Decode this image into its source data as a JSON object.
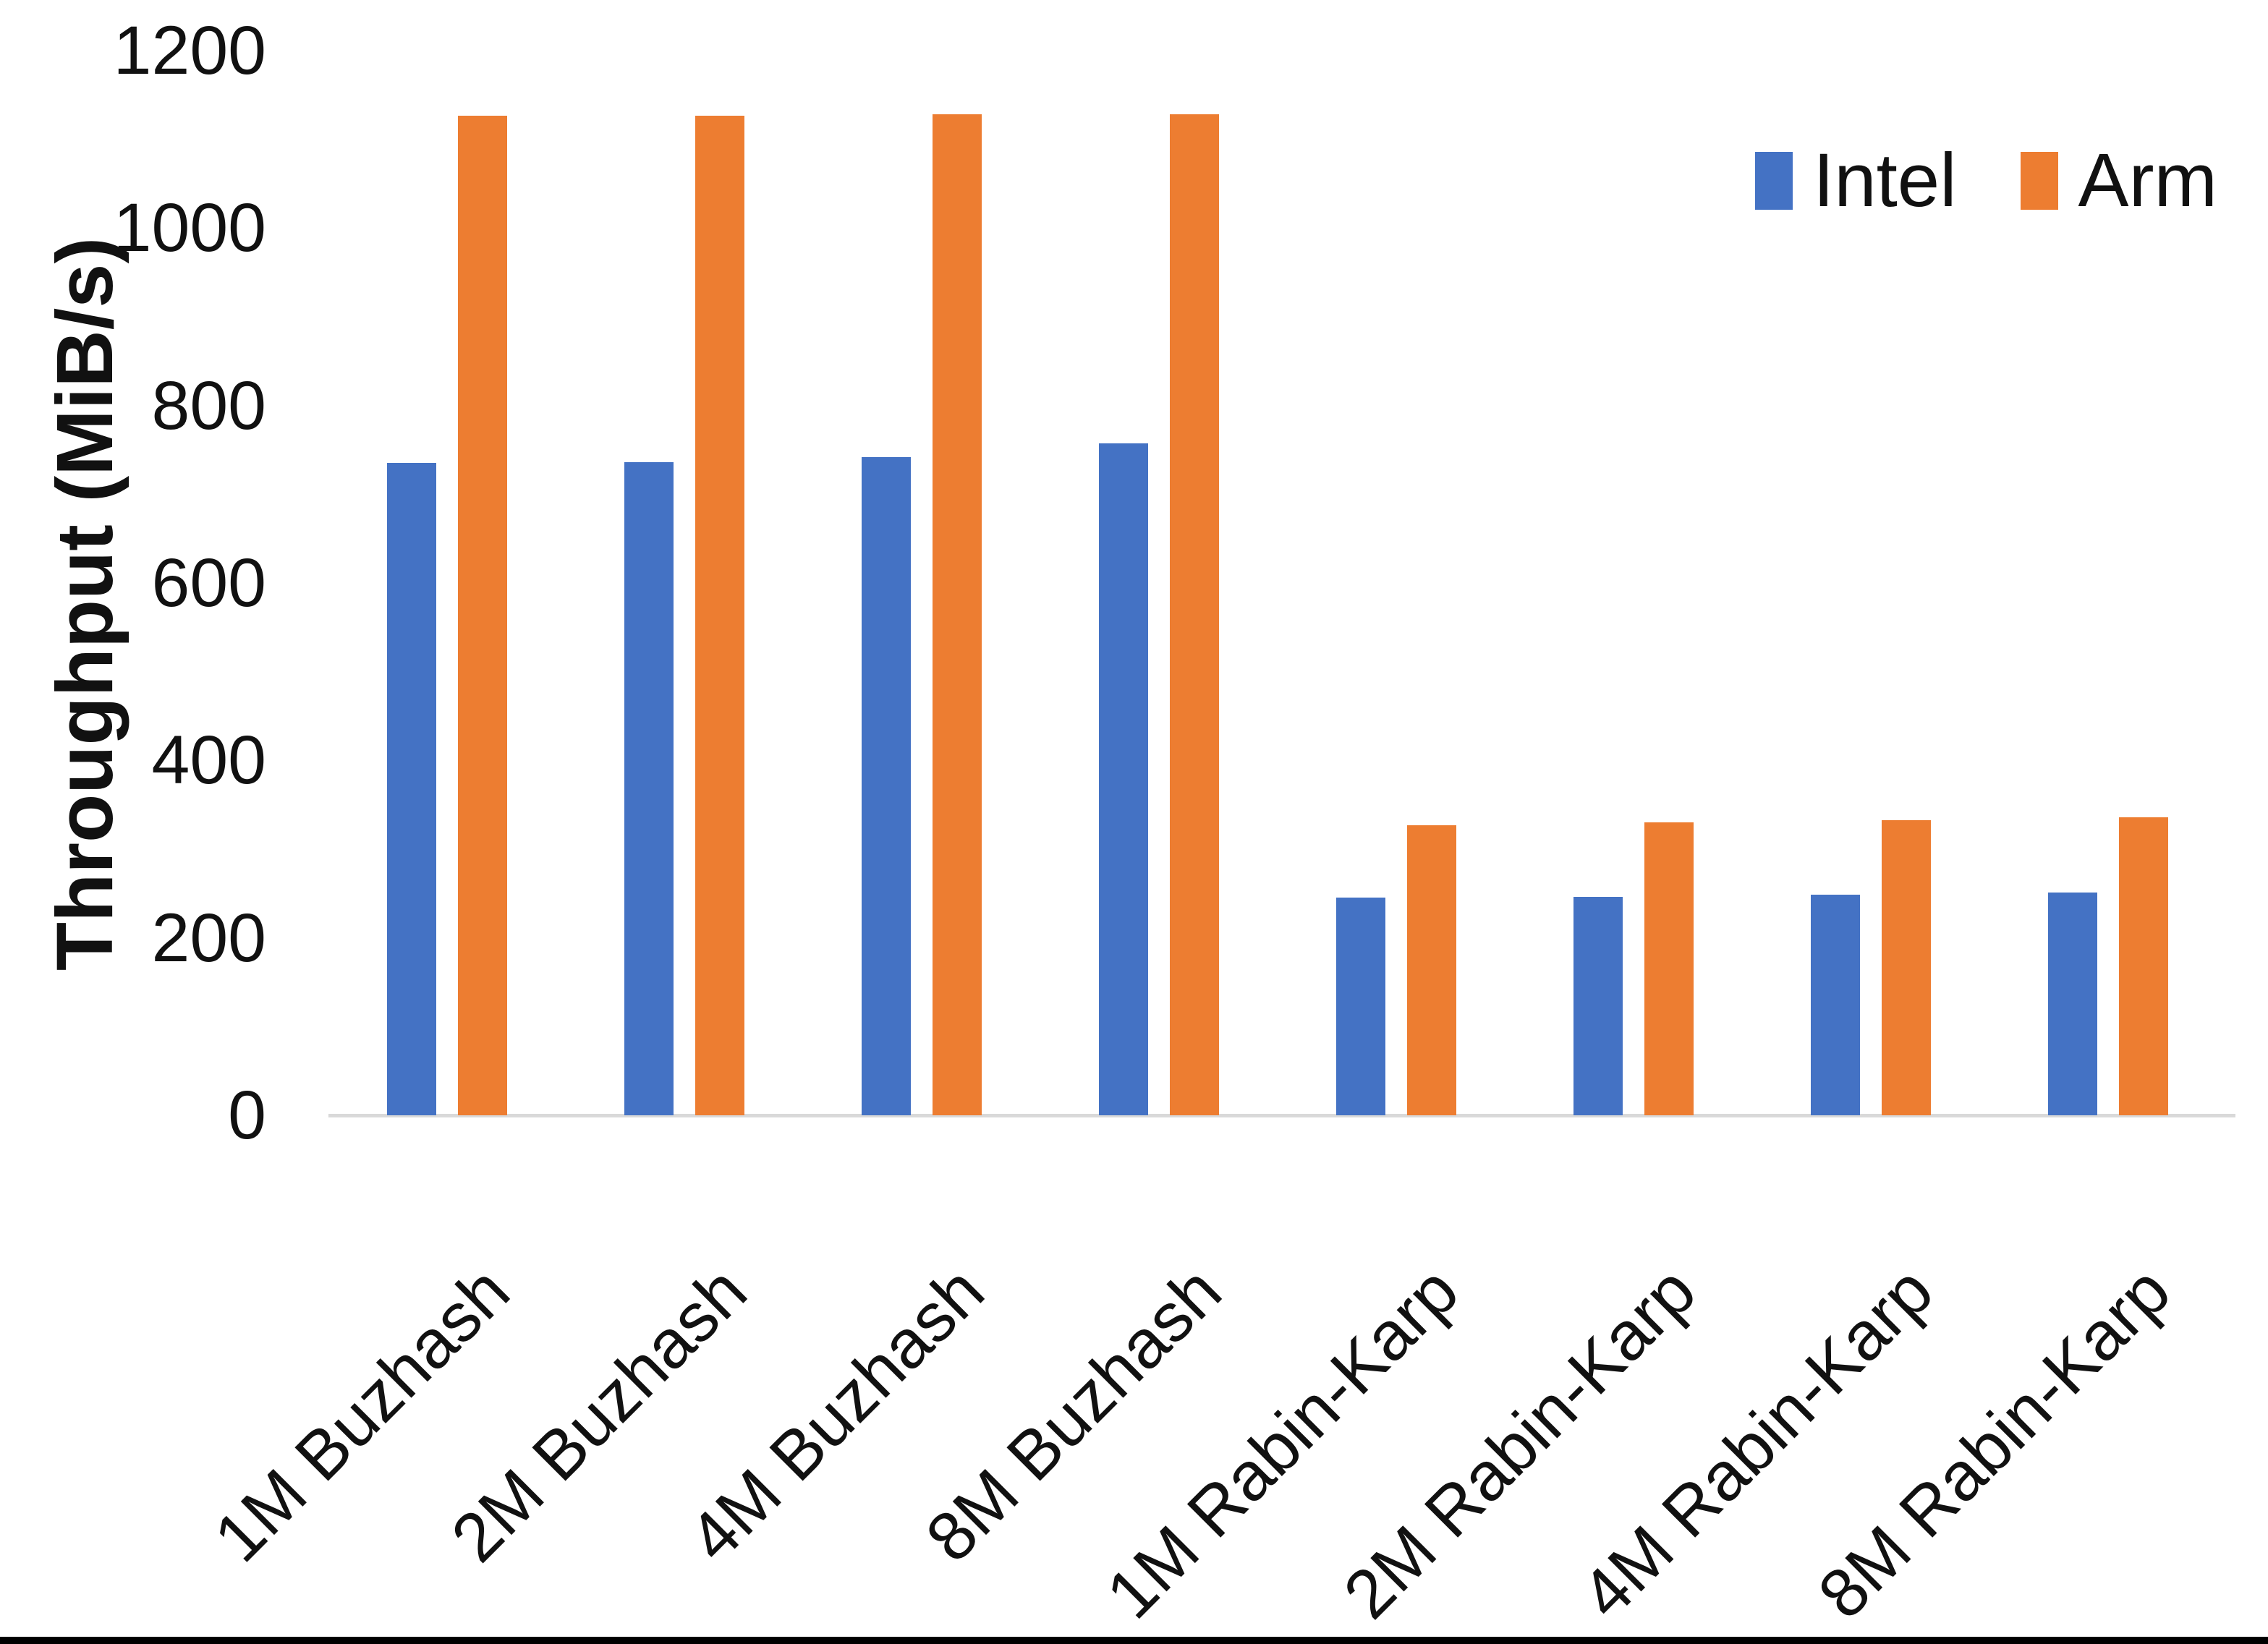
{
  "chart_data": {
    "type": "bar",
    "title": "",
    "xlabel": "",
    "ylabel": "Throughput (MiB/s)",
    "ylim": [
      0,
      1200
    ],
    "yticks": [
      0,
      200,
      400,
      600,
      800,
      1000,
      1200
    ],
    "grid": false,
    "legend_position": "top-right",
    "axis_line_color": "#d9d9d9",
    "categories": [
      "1M Buzhash",
      "2M Buzhash",
      "4M Buzhash",
      "8M Buzhash",
      "1M Rabin-Karp",
      "2M Rabin-Karp",
      "4M Rabin-Karp",
      "8M Rabin-Karp"
    ],
    "series": [
      {
        "name": "Intel",
        "color": "#4472C4",
        "values": [
          735,
          736,
          742,
          757,
          245,
          246,
          249,
          251
        ]
      },
      {
        "name": "Arm",
        "color": "#ED7D31",
        "values": [
          1127,
          1127,
          1128,
          1128,
          327,
          330,
          333,
          336
        ]
      }
    ]
  }
}
